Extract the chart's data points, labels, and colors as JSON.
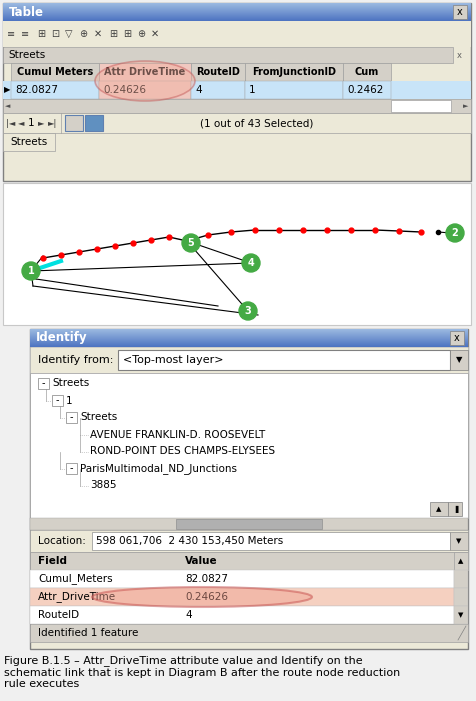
{
  "fig_width": 4.76,
  "fig_height": 7.01,
  "title_text": "Figure B.1.5 – Attr_DriveTime attribute value and Identify on the\nschematic link that is kept in Diagram B after the route node reduction\nrule executes",
  "table_title": "Table",
  "table_header": [
    "Cumul Meters",
    "Attr DriveTime",
    "RouteID",
    "FromJunctionID",
    "Cum"
  ],
  "table_row": [
    "82.0827",
    "0.24626",
    "4",
    "1",
    "0.2462"
  ],
  "table_subheader": "Streets",
  "table_nav": "(1 out of 43 Selected)",
  "identify_title": "Identify",
  "identify_from_label": "Identify from:",
  "identify_from_value": "<Top-most layer>",
  "location_label": "Location:",
  "location_value": "598 061,706  2 430 153,450 Meters",
  "fields": [
    "Cumul_Meters",
    "Attr_DriveTime",
    "RouteID"
  ],
  "values": [
    "82.0827",
    "0.24626",
    "4"
  ],
  "bottom_text": "Identified 1 feature",
  "highlight_row": 1,
  "header_col_highlight": 1,
  "table_header_bg": "#d4d0c8",
  "table_row_selected_bg": "#c8e4f8",
  "table_highlight_col_bg": "#f0c8c0",
  "identify_row_highlight_bg": "#f5d0c0",
  "window_bg": "#ece9d8",
  "identify_tree_bg": "#ffffff",
  "caption_color": "#000000"
}
